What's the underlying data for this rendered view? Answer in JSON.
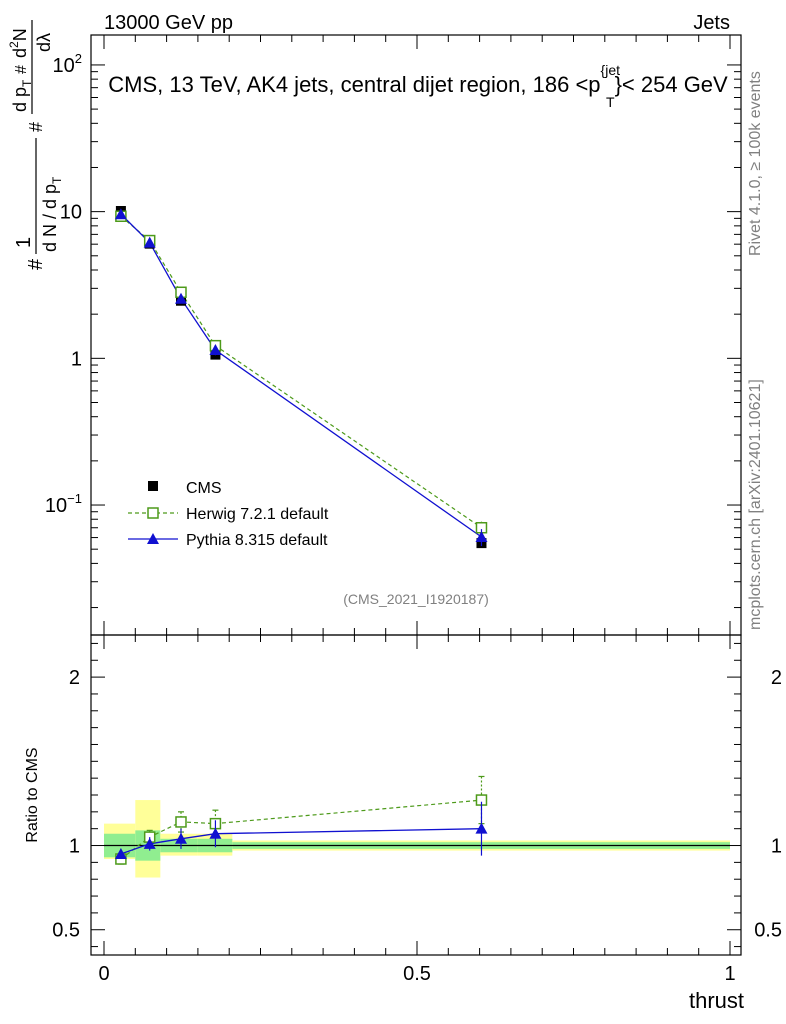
{
  "header": {
    "left": "13000 GeV pp",
    "right": "Jets"
  },
  "chart_data": {
    "type": "line",
    "title": "CMS, 13 TeV, AK4 jets, central dijet region, 186 <p_T^{jet}< 254 GeV",
    "title_parts": [
      "CMS, 13 TeV, AK4 jets, central dijet region, 186 <p",
      "{jet",
      "T",
      "}< 254 GeV"
    ],
    "xlabel": "thrust",
    "ylabel_parts": [
      "#",
      "1",
      "d N / d p",
      "T",
      "#",
      "d p",
      "T",
      "#",
      "d",
      "2",
      "N",
      "dλ"
    ],
    "xlim": [
      0,
      1
    ],
    "ylim": [
      0.013,
      160
    ],
    "yscale": "log",
    "x_ticks": [
      0,
      0.5,
      1
    ],
    "x_tick_labels": [
      "0",
      "0.5",
      "1"
    ],
    "y_ticks": [
      {
        "value": 0.1,
        "base": "10",
        "exp": "−1"
      },
      {
        "value": 1,
        "base": "1",
        "exp": ""
      },
      {
        "value": 10,
        "base": "10",
        "exp": ""
      },
      {
        "value": 100,
        "base": "10",
        "exp": "2"
      }
    ],
    "bins": [
      [
        0,
        0.05
      ],
      [
        0.05,
        0.09
      ],
      [
        0.09,
        0.15
      ],
      [
        0.15,
        0.205
      ],
      [
        0.205,
        1.0
      ]
    ],
    "series": [
      {
        "name": "CMS",
        "x": [
          0.027,
          0.073,
          0.123,
          0.178,
          0.603
        ],
        "y": [
          10.1,
          6.05,
          2.47,
          1.06,
          0.055
        ],
        "marker": "square-filled",
        "color": "#000000"
      },
      {
        "name": "Herwig 7.2.1 default",
        "x": [
          0.027,
          0.073,
          0.123,
          0.178,
          0.603
        ],
        "y": [
          9.3,
          6.35,
          2.82,
          1.22,
          0.07
        ],
        "yerr": [
          0.3,
          0.3,
          0.18,
          0.1,
          0.007
        ],
        "marker": "square-open",
        "color": "#4d9a1a",
        "dashed": true
      },
      {
        "name": "Pythia 8.315 default",
        "x": [
          0.027,
          0.073,
          0.123,
          0.178,
          0.603
        ],
        "y": [
          9.6,
          6.15,
          2.55,
          1.14,
          0.0605
        ],
        "yerr": [
          0.25,
          0.25,
          0.15,
          0.09,
          0.008
        ],
        "marker": "triangle-filled",
        "color": "#1010d0",
        "dashed": false
      }
    ],
    "ratio": {
      "ylabel": "Ratio to CMS",
      "ylim": [
        0.35,
        2.25
      ],
      "y_ticks": [
        0.5,
        1,
        2
      ],
      "y_tick_labels": [
        "0.5",
        "1",
        "2"
      ],
      "band_stat": [
        [
          0.93,
          1.07
        ],
        [
          0.91,
          1.09
        ],
        [
          0.96,
          1.04
        ],
        [
          0.96,
          1.04
        ],
        [
          0.98,
          1.02
        ]
      ],
      "band_total": [
        [
          0.92,
          1.13
        ],
        [
          0.81,
          1.27
        ],
        [
          0.94,
          1.07
        ],
        [
          0.94,
          1.07
        ],
        [
          0.97,
          1.03
        ]
      ],
      "herwig": {
        "y": [
          0.92,
          1.05,
          1.14,
          1.13,
          1.27
        ],
        "yerr": [
          0.03,
          0.04,
          0.06,
          0.08,
          0.14
        ]
      },
      "pythia": {
        "y": [
          0.95,
          1.01,
          1.04,
          1.07,
          1.1
        ],
        "yerr": [
          0.03,
          0.04,
          0.06,
          0.08,
          0.16
        ]
      }
    }
  },
  "legend": [
    {
      "label": "CMS"
    },
    {
      "label": "Herwig 7.2.1 default"
    },
    {
      "label": "Pythia 8.315 default"
    }
  ],
  "watermark": "(CMS_2021_I1920187)",
  "side_text": {
    "rivet": "Rivet 4.1.0, ≥ 100k events",
    "mcplots": "mcplots.cern.ch [arXiv:2401.10621]"
  },
  "colors": {
    "cms": "#000000",
    "herwig": "#4d9a1a",
    "pythia": "#1010d0",
    "band_stat": "#90ee90",
    "band_total": "#ffff99"
  }
}
